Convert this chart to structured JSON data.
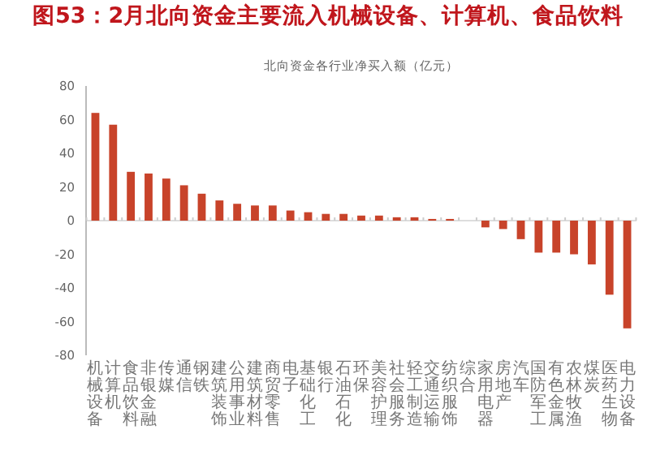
{
  "chart_data": {
    "type": "bar",
    "title": "图53：2月北向资金主要流入机械设备、计算机、食品饮料",
    "subtitle": "北向资金各行业净买入额（亿元）",
    "categories": [
      "机械设备",
      "计算机",
      "食品饮料",
      "非银金融",
      "传媒",
      "通信",
      "钢铁",
      "建筑装饰",
      "公用事业",
      "建筑材料",
      "商贸零售",
      "电子",
      "基础化工",
      "银行",
      "石油石化",
      "环保",
      "美容护理",
      "社会服务",
      "轻工制造",
      "交通运输",
      "纺织服饰",
      "综合",
      "家用电器",
      "房地产",
      "汽车",
      "国防军工",
      "有色金属",
      "农林牧渔",
      "煤炭",
      "医药生物",
      "电力设备"
    ],
    "values": [
      64,
      57,
      29,
      28,
      25,
      21,
      16,
      12,
      10,
      9,
      9,
      6,
      5,
      4,
      4,
      3,
      3,
      2,
      2,
      1,
      1,
      0,
      -4,
      -5,
      -11,
      -19,
      -19,
      -20,
      -26,
      -44,
      -64
    ],
    "color": "#c8432a",
    "ylim": [
      -80,
      80
    ],
    "yticks": [
      -80,
      -60,
      -40,
      -20,
      0,
      20,
      40,
      60,
      80
    ]
  }
}
